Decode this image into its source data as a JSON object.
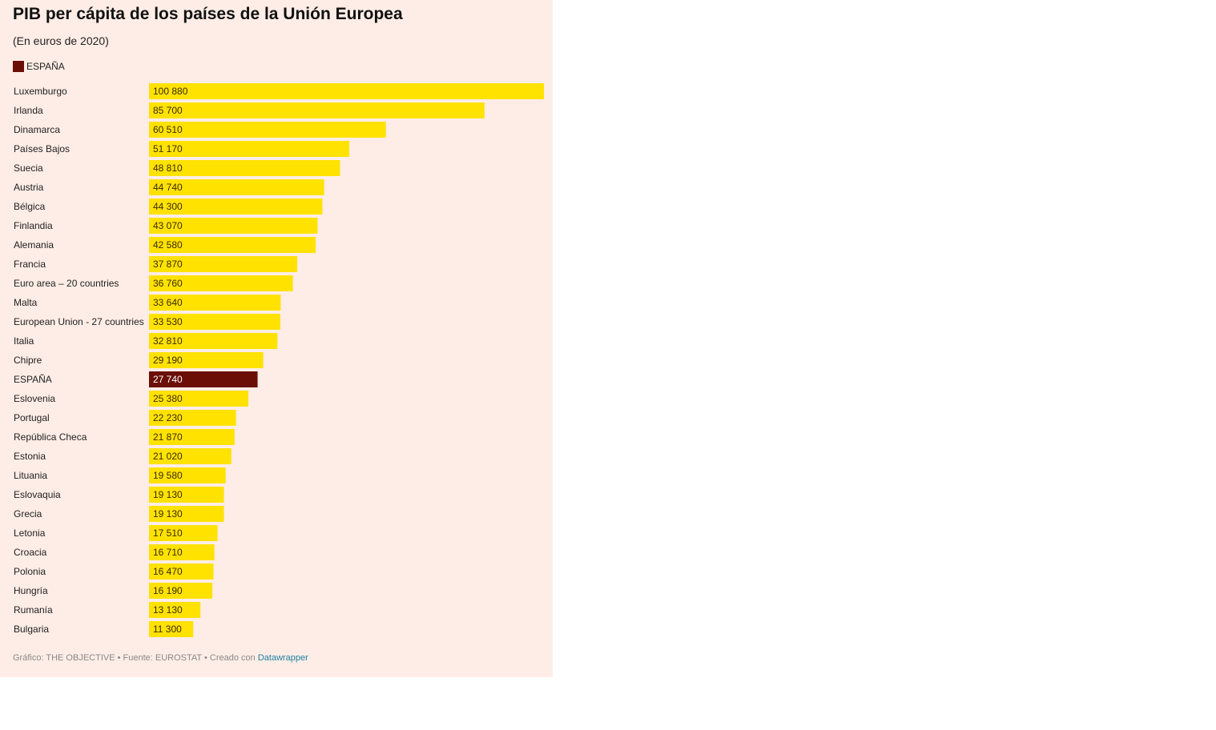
{
  "footer": {
    "credit": "Gráfico: THE OBJECTIVE • Fuente: EUROSTAT • Creado con ",
    "link": "Datawrapper"
  },
  "colors": {
    "background": "#feede6",
    "bar": "#ffe200",
    "highlight": "#6b0e06",
    "text": "#222222",
    "value_on_bar": "#3b2b00",
    "value_on_highlight": "#ffffff"
  },
  "chart_data": {
    "type": "bar",
    "orientation": "horizontal",
    "title": "PIB per cápita de los países de la Unión Europea",
    "subtitle": "(En euros de 2020)",
    "legend": [
      "ESPAÑA"
    ],
    "legend_placement": "top-left",
    "grid": false,
    "xlim": [
      0,
      100880
    ],
    "highlight": "ESPAÑA",
    "categories": [
      "Luxemburgo",
      "Irlanda",
      "Dinamarca",
      "Países Bajos",
      "Suecia",
      "Austria",
      "Bélgica",
      "Finlandia",
      "Alemania",
      "Francia",
      "Euro area – 20 countries",
      "Malta",
      "European Union - 27 countries",
      "Italia",
      "Chipre",
      "ESPAÑA",
      "Eslovenia",
      "Portugal",
      "República Checa",
      "Estonia",
      "Lituania",
      "Eslovaquia",
      "Grecia",
      "Letonia",
      "Croacia",
      "Polonia",
      "Hungría",
      "Rumanía",
      "Bulgaria"
    ],
    "values": [
      100880,
      85700,
      60510,
      51170,
      48810,
      44740,
      44300,
      43070,
      42580,
      37870,
      36760,
      33640,
      33530,
      32810,
      29190,
      27740,
      25380,
      22230,
      21870,
      21020,
      19580,
      19130,
      19130,
      17510,
      16710,
      16470,
      16190,
      13130,
      11300
    ],
    "value_labels": [
      "100 880",
      "85 700",
      "60 510",
      "51 170",
      "48 810",
      "44 740",
      "44 300",
      "43 070",
      "42 580",
      "37 870",
      "36 760",
      "33 640",
      "33 530",
      "32 810",
      "29 190",
      "27 740",
      "25 380",
      "22 230",
      "21 870",
      "21 020",
      "19 580",
      "19 130",
      "19 130",
      "17 510",
      "16 710",
      "16 470",
      "16 190",
      "13 130",
      "11 300"
    ]
  }
}
